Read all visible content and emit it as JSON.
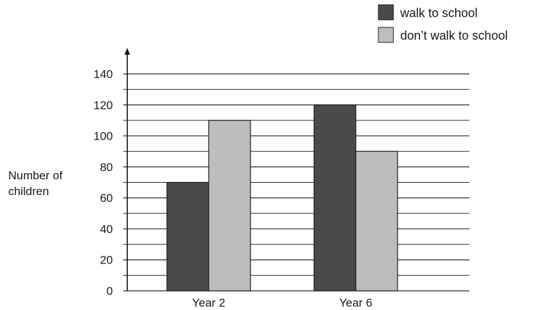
{
  "chart_data": {
    "type": "bar",
    "categories": [
      "Year 2",
      "Year 6"
    ],
    "series": [
      {
        "name": "walk to school",
        "values": [
          70,
          120
        ],
        "color": "#4a4a4a"
      },
      {
        "name": "don’t walk to school",
        "values": [
          110,
          90
        ],
        "color": "#bdbdbd"
      }
    ],
    "ylabel_lines": [
      "Number of",
      "children"
    ],
    "ylim": [
      0,
      140
    ],
    "y_ticks": [
      0,
      20,
      40,
      60,
      80,
      100,
      120,
      140
    ],
    "minor_grid_step": 10,
    "grid": true,
    "legend_position": "top-right"
  }
}
